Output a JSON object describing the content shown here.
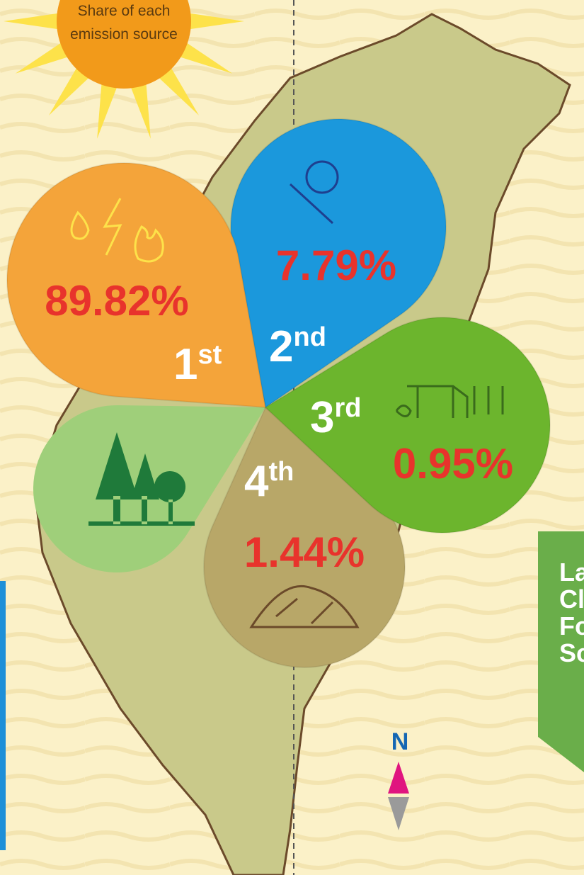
{
  "sun": {
    "lines": [
      "Share of each",
      "emission source"
    ]
  },
  "sources": [
    {
      "rank": "1",
      "suffix": "st",
      "share": "89.82%"
    },
    {
      "rank": "2",
      "suffix": "nd",
      "share": "7.79%"
    },
    {
      "rank": "3",
      "suffix": "rd",
      "share": "0.95%"
    },
    {
      "rank": "4",
      "suffix": "th",
      "share": "1.44%"
    }
  ],
  "side_panel": {
    "lines": [
      "La",
      "Cl",
      "Fo",
      "Sc"
    ]
  },
  "compass": "N"
}
